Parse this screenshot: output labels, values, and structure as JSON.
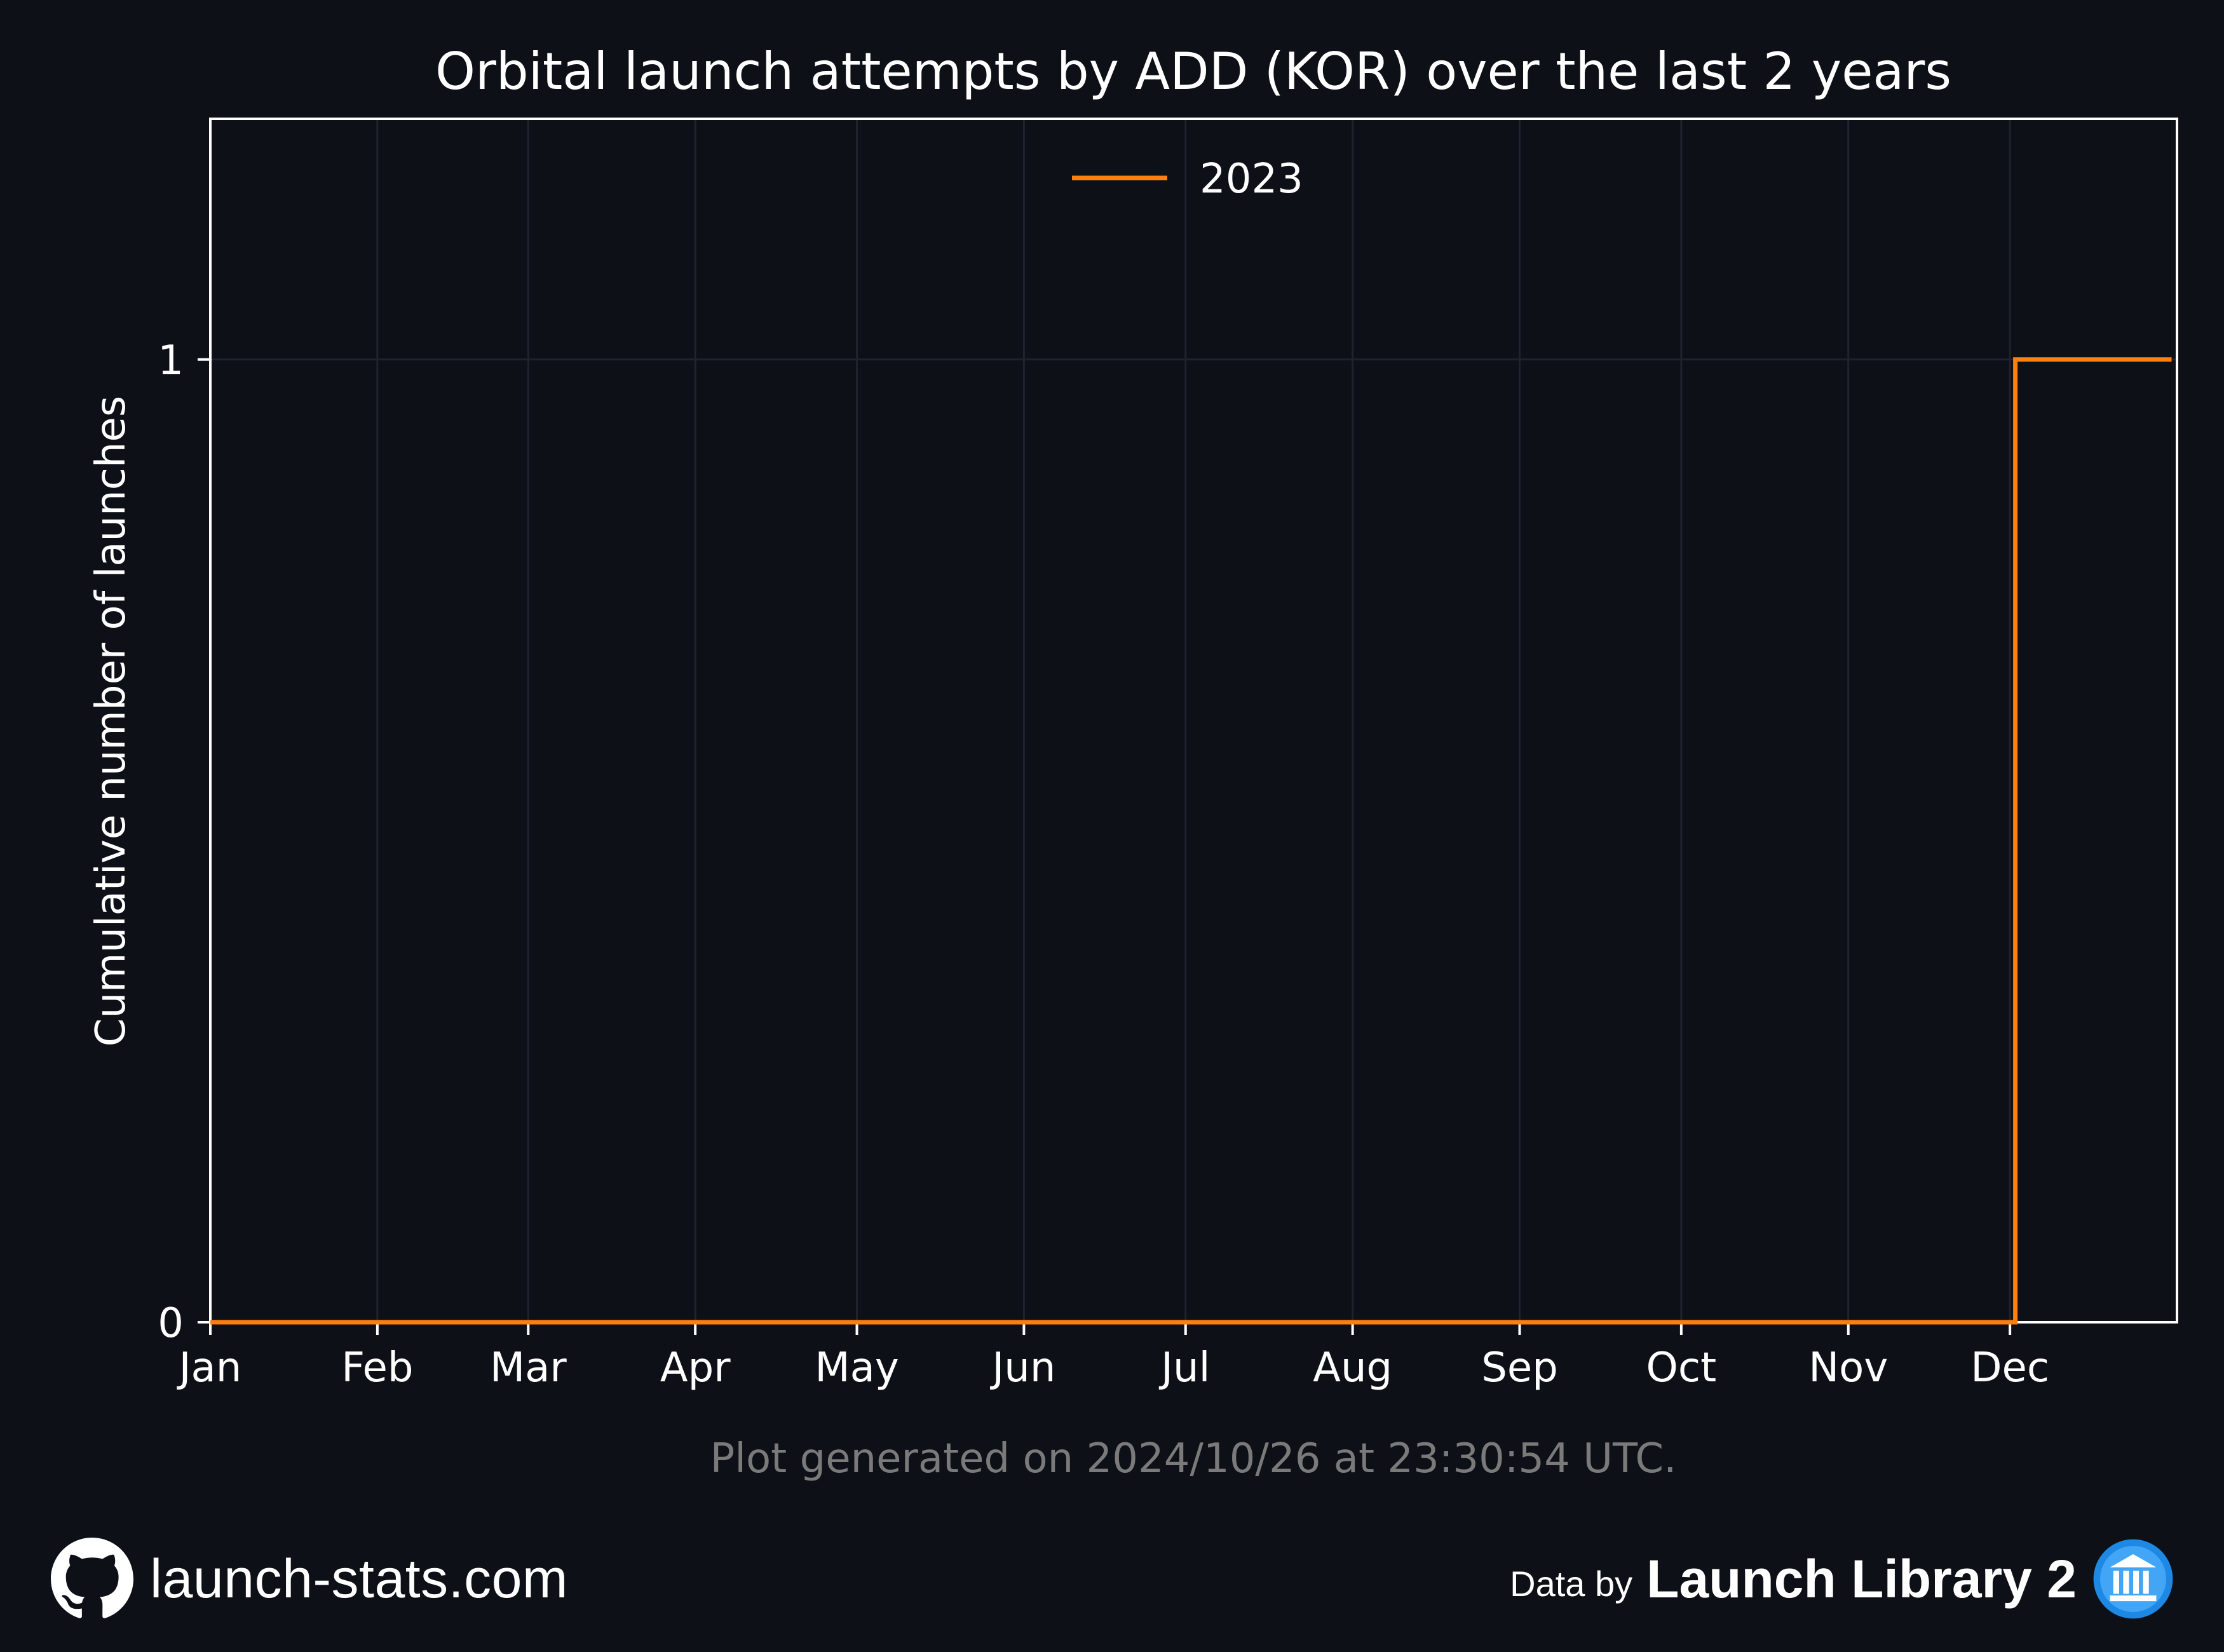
{
  "chart_data": {
    "type": "line",
    "step": true,
    "title": "Orbital launch attempts by ADD (KOR) over the last 2 years",
    "xlabel": "",
    "ylabel": "Cumulative number of launches",
    "x_ticks": [
      "Jan",
      "Feb",
      "Mar",
      "Apr",
      "May",
      "Jun",
      "Jul",
      "Aug",
      "Sep",
      "Oct",
      "Nov",
      "Dec"
    ],
    "xlim": [
      1,
      366
    ],
    "ylim": [
      0,
      1.25
    ],
    "y_ticks": [
      0,
      1
    ],
    "grid": true,
    "legend_position": "top-center",
    "series": [
      {
        "name": "2023",
        "color": "#ff7f0e",
        "points": [
          [
            "Jan 1",
            0
          ],
          [
            "Dec 2",
            0
          ],
          [
            "Dec 2",
            1
          ],
          [
            "Dec 31",
            1
          ]
        ]
      }
    ]
  },
  "footnote": "Plot generated on 2024/10/26 at 23:30:54 UTC.",
  "footer": {
    "site": "launch-stats.com",
    "site_icon": "github-icon",
    "data_by": "Data by",
    "brand": "Launch Library 2",
    "brand_icon": "launch-library-logo-icon"
  },
  "colors": {
    "background": "#0d1017",
    "frame": "#ffffff",
    "grid": "#1e232c",
    "footnote": "#7a7a7a"
  }
}
